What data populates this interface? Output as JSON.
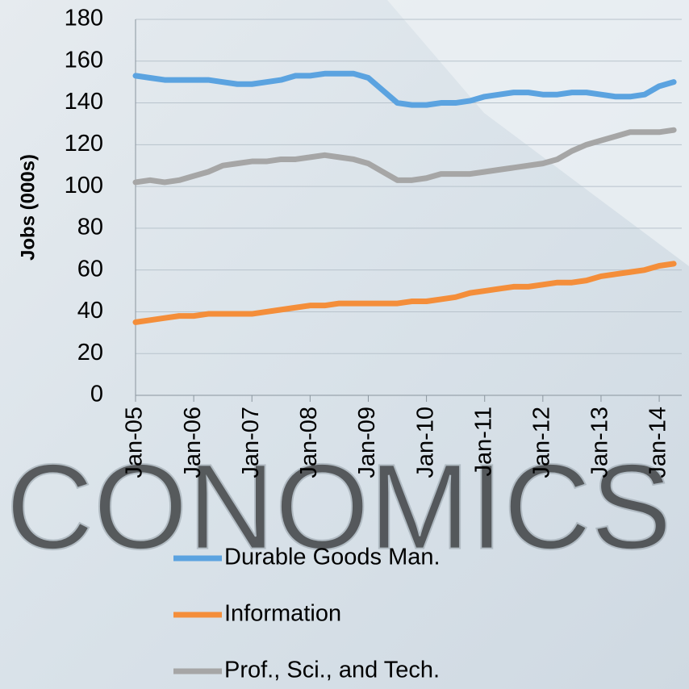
{
  "chart_data": {
    "type": "line",
    "y_label": "Jobs (000s)",
    "watermark": "CONOMICS",
    "categories": [
      "Jan-05",
      null,
      null,
      null,
      "Jan-06",
      null,
      null,
      null,
      "Jan-07",
      null,
      null,
      null,
      "Jan-08",
      null,
      null,
      null,
      "Jan-09",
      null,
      null,
      null,
      "Jan-10",
      null,
      null,
      null,
      "Jan-11",
      null,
      null,
      null,
      "Jan-12",
      null,
      null,
      null,
      "Jan-13",
      null,
      null,
      null,
      "Jan-14",
      null
    ],
    "series": [
      {
        "name": "Durable Goods Man.",
        "color": "#5ba3e0",
        "values": [
          153,
          152,
          151,
          151,
          151,
          151,
          150,
          149,
          149,
          150,
          151,
          153,
          153,
          154,
          154,
          154,
          152,
          146,
          140,
          139,
          139,
          140,
          140,
          141,
          143,
          144,
          145,
          145,
          144,
          144,
          145,
          145,
          144,
          143,
          143,
          144,
          148,
          150
        ]
      },
      {
        "name": "Information",
        "color": "#f48e3a",
        "values": [
          35,
          36,
          37,
          38,
          38,
          39,
          39,
          39,
          39,
          40,
          41,
          42,
          43,
          43,
          44,
          44,
          44,
          44,
          44,
          45,
          45,
          46,
          47,
          49,
          50,
          51,
          52,
          52,
          53,
          54,
          54,
          55,
          57,
          58,
          59,
          60,
          62,
          63
        ]
      },
      {
        "name": "Prof., Sci., and Tech.",
        "color": "#a6a6a6",
        "values": [
          102,
          103,
          102,
          103,
          105,
          107,
          110,
          111,
          112,
          112,
          113,
          113,
          114,
          115,
          114,
          113,
          111,
          107,
          103,
          103,
          104,
          106,
          106,
          106,
          107,
          108,
          109,
          110,
          111,
          113,
          117,
          120,
          122,
          124,
          126,
          126,
          126,
          127
        ]
      }
    ],
    "ylim": [
      0,
      180
    ],
    "yticks": [
      0,
      20,
      40,
      60,
      80,
      100,
      120,
      140,
      160,
      180
    ],
    "grid": true
  }
}
